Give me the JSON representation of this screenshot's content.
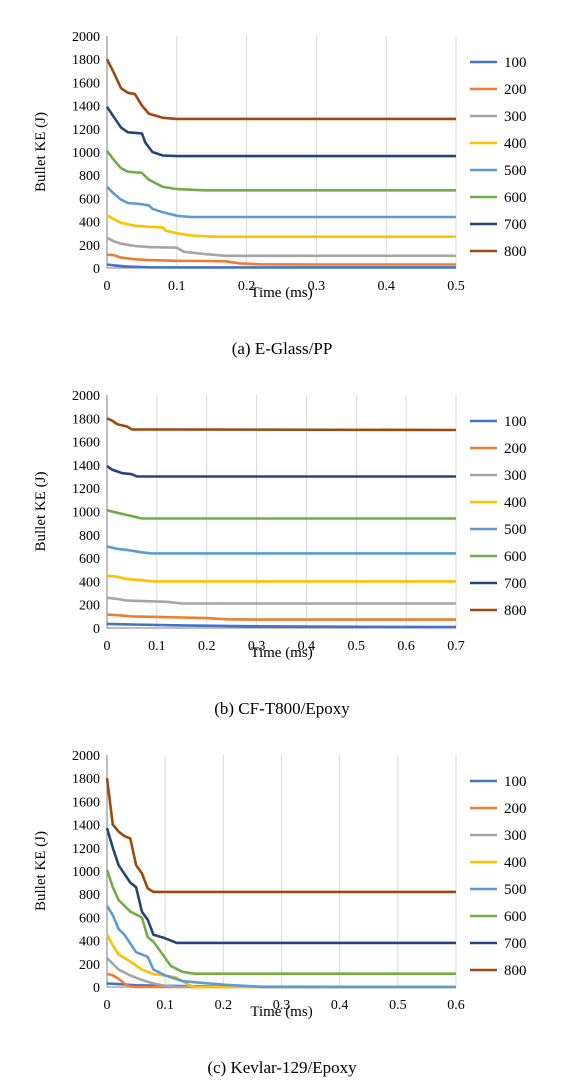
{
  "figure": {
    "series_colors": [
      "#4472C4",
      "#ED7D31",
      "#A5A5A5",
      "#FFC000",
      "#5B9BD5",
      "#70AD47",
      "#264478",
      "#9E480E"
    ]
  },
  "chart_data": [
    {
      "type": "line",
      "caption": "(a) E-Glass/PP",
      "xlabel": "Time (ms)",
      "ylabel": "Bullet KE (J)",
      "xlim": [
        0,
        0.5
      ],
      "ylim": [
        0,
        2000
      ],
      "xticks": [
        "0",
        "0.1",
        "0.2",
        "0.3",
        "0.4",
        "0.5"
      ],
      "yticks": [
        "0",
        "200",
        "400",
        "600",
        "800",
        "1000",
        "1200",
        "1400",
        "1600",
        "1800",
        "2000"
      ],
      "grid": "vertical",
      "legend_position": "right",
      "series": [
        {
          "name": "100",
          "points": [
            [
              0,
              30
            ],
            [
              0.01,
              22
            ],
            [
              0.03,
              12
            ],
            [
              0.06,
              6
            ],
            [
              0.1,
              5
            ],
            [
              0.5,
              5
            ]
          ]
        },
        {
          "name": "200",
          "points": [
            [
              0,
              115
            ],
            [
              0.01,
              110
            ],
            [
              0.02,
              90
            ],
            [
              0.04,
              75
            ],
            [
              0.06,
              68
            ],
            [
              0.1,
              62
            ],
            [
              0.14,
              60
            ],
            [
              0.17,
              58
            ],
            [
              0.19,
              40
            ],
            [
              0.22,
              32
            ],
            [
              0.3,
              30
            ],
            [
              0.5,
              30
            ]
          ]
        },
        {
          "name": "300",
          "points": [
            [
              0,
              260
            ],
            [
              0.01,
              230
            ],
            [
              0.02,
              210
            ],
            [
              0.04,
              190
            ],
            [
              0.06,
              180
            ],
            [
              0.1,
              175
            ],
            [
              0.11,
              140
            ],
            [
              0.14,
              120
            ],
            [
              0.17,
              105
            ],
            [
              0.5,
              105
            ]
          ]
        },
        {
          "name": "400",
          "points": [
            [
              0,
              455
            ],
            [
              0.01,
              420
            ],
            [
              0.02,
              390
            ],
            [
              0.04,
              365
            ],
            [
              0.06,
              355
            ],
            [
              0.08,
              350
            ],
            [
              0.085,
              320
            ],
            [
              0.1,
              300
            ],
            [
              0.12,
              280
            ],
            [
              0.15,
              270
            ],
            [
              0.5,
              270
            ]
          ]
        },
        {
          "name": "500",
          "points": [
            [
              0,
              700
            ],
            [
              0.01,
              640
            ],
            [
              0.02,
              590
            ],
            [
              0.03,
              560
            ],
            [
              0.05,
              550
            ],
            [
              0.06,
              540
            ],
            [
              0.065,
              510
            ],
            [
              0.08,
              480
            ],
            [
              0.1,
              450
            ],
            [
              0.12,
              440
            ],
            [
              0.5,
              440
            ]
          ]
        },
        {
          "name": "600",
          "points": [
            [
              0,
              1010
            ],
            [
              0.01,
              930
            ],
            [
              0.02,
              860
            ],
            [
              0.03,
              830
            ],
            [
              0.05,
              820
            ],
            [
              0.06,
              760
            ],
            [
              0.08,
              700
            ],
            [
              0.1,
              680
            ],
            [
              0.14,
              670
            ],
            [
              0.5,
              670
            ]
          ]
        },
        {
          "name": "700",
          "points": [
            [
              0,
              1390
            ],
            [
              0.01,
              1300
            ],
            [
              0.02,
              1210
            ],
            [
              0.03,
              1170
            ],
            [
              0.05,
              1160
            ],
            [
              0.055,
              1080
            ],
            [
              0.065,
              1000
            ],
            [
              0.08,
              970
            ],
            [
              0.1,
              965
            ],
            [
              0.5,
              965
            ]
          ]
        },
        {
          "name": "800",
          "points": [
            [
              0,
              1800
            ],
            [
              0.01,
              1680
            ],
            [
              0.02,
              1550
            ],
            [
              0.03,
              1510
            ],
            [
              0.04,
              1500
            ],
            [
              0.05,
              1400
            ],
            [
              0.06,
              1330
            ],
            [
              0.08,
              1295
            ],
            [
              0.1,
              1285
            ],
            [
              0.5,
              1285
            ]
          ]
        }
      ]
    },
    {
      "type": "line",
      "caption": "(b) CF-T800/Epoxy",
      "xlabel": "Time (ms)",
      "ylabel": "Bullet KE (J)",
      "xlim": [
        0,
        0.7
      ],
      "ylim": [
        0,
        2000
      ],
      "xticks": [
        "0",
        "0.1",
        "0.2",
        "0.3",
        "0.4",
        "0.5",
        "0.6",
        "0.7"
      ],
      "yticks": [
        "0",
        "200",
        "400",
        "600",
        "800",
        "1000",
        "1200",
        "1400",
        "1600",
        "1800",
        "2000"
      ],
      "grid": "vertical",
      "legend_position": "right",
      "series": [
        {
          "name": "100",
          "points": [
            [
              0,
              35
            ],
            [
              0.05,
              30
            ],
            [
              0.15,
              22
            ],
            [
              0.3,
              15
            ],
            [
              0.5,
              10
            ],
            [
              0.7,
              8
            ]
          ]
        },
        {
          "name": "200",
          "points": [
            [
              0,
              115
            ],
            [
              0.02,
              110
            ],
            [
              0.05,
              100
            ],
            [
              0.1,
              95
            ],
            [
              0.15,
              90
            ],
            [
              0.2,
              85
            ],
            [
              0.24,
              75
            ],
            [
              0.3,
              72
            ],
            [
              0.7,
              72
            ]
          ]
        },
        {
          "name": "300",
          "points": [
            [
              0,
              260
            ],
            [
              0.02,
              250
            ],
            [
              0.04,
              235
            ],
            [
              0.08,
              230
            ],
            [
              0.12,
              225
            ],
            [
              0.15,
              210
            ],
            [
              0.7,
              210
            ]
          ]
        },
        {
          "name": "400",
          "points": [
            [
              0,
              450
            ],
            [
              0.02,
              440
            ],
            [
              0.04,
              420
            ],
            [
              0.07,
              410
            ],
            [
              0.09,
              400
            ],
            [
              0.7,
              400
            ]
          ]
        },
        {
          "name": "500",
          "points": [
            [
              0,
              700
            ],
            [
              0.02,
              680
            ],
            [
              0.04,
              670
            ],
            [
              0.07,
              650
            ],
            [
              0.09,
              640
            ],
            [
              0.7,
              640
            ]
          ]
        },
        {
          "name": "600",
          "points": [
            [
              0,
              1010
            ],
            [
              0.02,
              990
            ],
            [
              0.04,
              970
            ],
            [
              0.06,
              950
            ],
            [
              0.07,
              940
            ],
            [
              0.7,
              940
            ]
          ]
        },
        {
          "name": "700",
          "points": [
            [
              0,
              1390
            ],
            [
              0.01,
              1360
            ],
            [
              0.03,
              1330
            ],
            [
              0.05,
              1320
            ],
            [
              0.06,
              1300
            ],
            [
              0.7,
              1300
            ]
          ]
        },
        {
          "name": "800",
          "points": [
            [
              0,
              1800
            ],
            [
              0.01,
              1780
            ],
            [
              0.02,
              1750
            ],
            [
              0.04,
              1730
            ],
            [
              0.05,
              1705
            ],
            [
              0.7,
              1700
            ]
          ]
        }
      ]
    },
    {
      "type": "line",
      "caption": "(c) Kevlar-129/Epoxy",
      "xlabel": "Time (ms)",
      "ylabel": "Bullet KE (J)",
      "xlim": [
        0,
        0.6
      ],
      "ylim": [
        0,
        2000
      ],
      "xticks": [
        "0",
        "0.1",
        "0.2",
        "0.3",
        "0.4",
        "0.5",
        "0.6"
      ],
      "yticks": [
        "0",
        "200",
        "400",
        "600",
        "800",
        "1000",
        "1200",
        "1400",
        "1600",
        "1800",
        "2000"
      ],
      "grid": "vertical",
      "legend_position": "right",
      "series": [
        {
          "name": "100",
          "points": [
            [
              0,
              30
            ],
            [
              0.02,
              25
            ],
            [
              0.05,
              15
            ],
            [
              0.1,
              10
            ],
            [
              0.15,
              6
            ],
            [
              0.25,
              3
            ],
            [
              0.6,
              2
            ]
          ]
        },
        {
          "name": "200",
          "points": [
            [
              0,
              115
            ],
            [
              0.01,
              100
            ],
            [
              0.02,
              70
            ],
            [
              0.03,
              30
            ],
            [
              0.04,
              5
            ],
            [
              0.05,
              0
            ],
            [
              0.6,
              0
            ]
          ]
        },
        {
          "name": "300",
          "points": [
            [
              0,
              250
            ],
            [
              0.01,
              200
            ],
            [
              0.02,
              150
            ],
            [
              0.04,
              100
            ],
            [
              0.06,
              60
            ],
            [
              0.08,
              30
            ],
            [
              0.1,
              10
            ],
            [
              0.12,
              2
            ],
            [
              0.6,
              0
            ]
          ]
        },
        {
          "name": "400",
          "points": [
            [
              0,
              450
            ],
            [
              0.01,
              360
            ],
            [
              0.02,
              280
            ],
            [
              0.04,
              220
            ],
            [
              0.06,
              150
            ],
            [
              0.08,
              110
            ],
            [
              0.1,
              100
            ],
            [
              0.12,
              80
            ],
            [
              0.14,
              20
            ],
            [
              0.15,
              0
            ],
            [
              0.6,
              0
            ]
          ]
        },
        {
          "name": "500",
          "points": [
            [
              0,
              700
            ],
            [
              0.01,
              620
            ],
            [
              0.02,
              500
            ],
            [
              0.03,
              450
            ],
            [
              0.05,
              300
            ],
            [
              0.07,
              260
            ],
            [
              0.08,
              150
            ],
            [
              0.1,
              100
            ],
            [
              0.13,
              50
            ],
            [
              0.2,
              20
            ],
            [
              0.27,
              0
            ],
            [
              0.6,
              0
            ]
          ]
        },
        {
          "name": "600",
          "points": [
            [
              0,
              1010
            ],
            [
              0.01,
              860
            ],
            [
              0.02,
              750
            ],
            [
              0.04,
              650
            ],
            [
              0.06,
              600
            ],
            [
              0.07,
              430
            ],
            [
              0.08,
              390
            ],
            [
              0.1,
              250
            ],
            [
              0.11,
              180
            ],
            [
              0.13,
              130
            ],
            [
              0.15,
              115
            ],
            [
              0.6,
              115
            ]
          ]
        },
        {
          "name": "700",
          "points": [
            [
              0,
              1370
            ],
            [
              0.01,
              1200
            ],
            [
              0.02,
              1050
            ],
            [
              0.04,
              900
            ],
            [
              0.05,
              860
            ],
            [
              0.06,
              650
            ],
            [
              0.07,
              580
            ],
            [
              0.08,
              450
            ],
            [
              0.1,
              420
            ],
            [
              0.12,
              380
            ],
            [
              0.6,
              380
            ]
          ]
        },
        {
          "name": "800",
          "points": [
            [
              0,
              1800
            ],
            [
              0.005,
              1600
            ],
            [
              0.01,
              1400
            ],
            [
              0.02,
              1340
            ],
            [
              0.03,
              1300
            ],
            [
              0.04,
              1280
            ],
            [
              0.05,
              1050
            ],
            [
              0.06,
              980
            ],
            [
              0.07,
              850
            ],
            [
              0.08,
              820
            ],
            [
              0.6,
              820
            ]
          ]
        }
      ]
    }
  ]
}
